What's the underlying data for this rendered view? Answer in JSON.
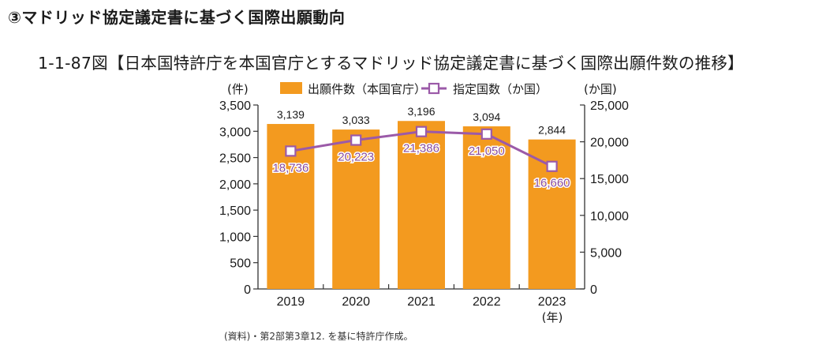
{
  "header": {
    "section_title": "③マドリッド協定議定書に基づく国際出願動向",
    "figure_title": "1-1-87図【日本国特許庁を本国官庁とするマドリッド協定議定書に基づく国際出願件数の推移】"
  },
  "source_note": "(資料)・第2部第3章12. を基に特許庁作成。",
  "chart_data": {
    "type": "bar",
    "title": "日本国特許庁を本国官庁とするマドリッド協定議定書に基づく国際出願件数の推移",
    "categories": [
      "2019",
      "2020",
      "2021",
      "2022",
      "2023"
    ],
    "xlabel": "(年)",
    "ylabel_left": "(件)",
    "ylabel_right": "(か国)",
    "ylim_left": [
      0,
      3500
    ],
    "ylim_right": [
      0,
      25000
    ],
    "yticks_left": [
      "0",
      "500",
      "1,000",
      "1,500",
      "2,000",
      "2,500",
      "3,000",
      "3,500"
    ],
    "yticks_right": [
      "0",
      "5,000",
      "10,000",
      "15,000",
      "20,000",
      "25,000"
    ],
    "legend_placement": "top",
    "grid": false,
    "series": [
      {
        "name": "出願件数（本国官庁）",
        "type": "bar",
        "axis": "left",
        "color": "#f39a1f",
        "values": [
          3139,
          3033,
          3196,
          3094,
          2844
        ],
        "labels": [
          "3,139",
          "3,033",
          "3,196",
          "3,094",
          "2,844"
        ]
      },
      {
        "name": "指定国数（か国）",
        "type": "line",
        "axis": "right",
        "color": "#9b5aa8",
        "marker": "square-open",
        "values": [
          18736,
          20223,
          21386,
          21050,
          16660
        ],
        "labels": [
          "18,736",
          "20,223",
          "21,386",
          "21,050",
          "16,660"
        ]
      }
    ]
  }
}
